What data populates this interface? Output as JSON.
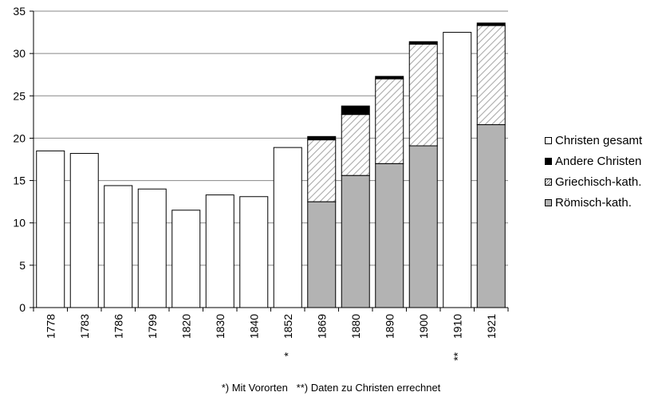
{
  "chart_data": {
    "type": "bar",
    "stacked": true,
    "categories": [
      "1778",
      "1783",
      "1786",
      "1799",
      "1820",
      "1830",
      "1840",
      "1852",
      "1869",
      "1880",
      "1890",
      "1900",
      "1910",
      "1921"
    ],
    "category_markers": [
      "",
      "",
      "",
      "",
      "",
      "",
      "",
      "*",
      "",
      "",
      "",
      "",
      "**",
      ""
    ],
    "series": [
      {
        "name": "Christen gesamt",
        "color": "#ffffff",
        "pattern": "solid-outline",
        "values": [
          18.5,
          18.2,
          14.4,
          14.0,
          11.5,
          13.3,
          13.1,
          18.9,
          null,
          null,
          null,
          null,
          32.5,
          null
        ]
      },
      {
        "name": "Römisch-kath.",
        "color": "#b3b3b3",
        "pattern": "solid",
        "values": [
          null,
          null,
          null,
          null,
          null,
          null,
          null,
          null,
          12.5,
          15.6,
          17.0,
          19.1,
          null,
          21.6
        ]
      },
      {
        "name": "Griechisch-kath.",
        "color": "#ffffff",
        "pattern": "diagonal-hatch",
        "values": [
          null,
          null,
          null,
          null,
          null,
          null,
          null,
          null,
          7.3,
          7.2,
          10.0,
          12.0,
          null,
          11.7
        ]
      },
      {
        "name": "Andere Christen",
        "color": "#000000",
        "pattern": "solid",
        "values": [
          null,
          null,
          null,
          null,
          null,
          null,
          null,
          null,
          0.4,
          1.0,
          0.3,
          0.3,
          null,
          0.3
        ]
      }
    ],
    "legend_order": [
      "Christen gesamt",
      "Andere Christen",
      "Griechisch-kath.",
      "Römisch-kath."
    ],
    "ylim": [
      0,
      35
    ],
    "yticks": [
      "0",
      "5",
      "10",
      "15",
      "20",
      "25",
      "30",
      "35"
    ],
    "grid": true,
    "legend_position": "right",
    "footnote": "*) Mit Vororten   **) Daten zu Christen errechnet"
  }
}
